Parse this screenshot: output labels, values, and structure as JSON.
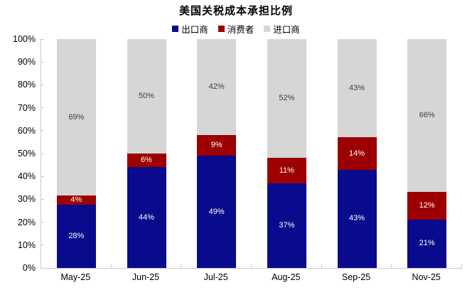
{
  "title": "美国关税成本承担比例",
  "colors": {
    "exporter_blue": "#0a0a8c",
    "consumer_red": "#9c0000",
    "importer_gray": "#d6d6d6",
    "axis_line": "#c9c9c9",
    "label_on_dark": "#ffffff",
    "label_on_gray": "#404040",
    "text": "#000000"
  },
  "legend": [
    {
      "label": "出口商",
      "color": "#0a0a8c"
    },
    {
      "label": "消费者",
      "color": "#9c0000"
    },
    {
      "label": "进口商",
      "color": "#d6d6d6"
    }
  ],
  "chart_data": {
    "type": "bar",
    "stacked": true,
    "title": "美国关税成本承担比例",
    "legend_position": "top",
    "grid": false,
    "categories": [
      "May-25",
      "Jun-25",
      "Jul-25",
      "Aug-25",
      "Sep-25",
      "Nov-25"
    ],
    "series": [
      {
        "name": "出口商",
        "color": "#0a0a8c",
        "label_color": "#ffffff",
        "values": [
          28,
          44,
          49,
          37,
          43,
          21
        ]
      },
      {
        "name": "消费者",
        "color": "#9c0000",
        "label_color": "#ffffff",
        "values": [
          4,
          6,
          9,
          11,
          14,
          12
        ]
      },
      {
        "name": "进口商",
        "color": "#d6d6d6",
        "label_color": "#404040",
        "values": [
          69,
          50,
          42,
          52,
          43,
          66
        ]
      }
    ],
    "value_suffix": "%",
    "xlabel": "",
    "ylabel": "",
    "ylim": [
      0,
      100
    ],
    "y_ticks": [
      "100%",
      "90%",
      "80%",
      "70%",
      "60%",
      "50%",
      "40%",
      "30%",
      "20%",
      "10%",
      "0%"
    ]
  }
}
